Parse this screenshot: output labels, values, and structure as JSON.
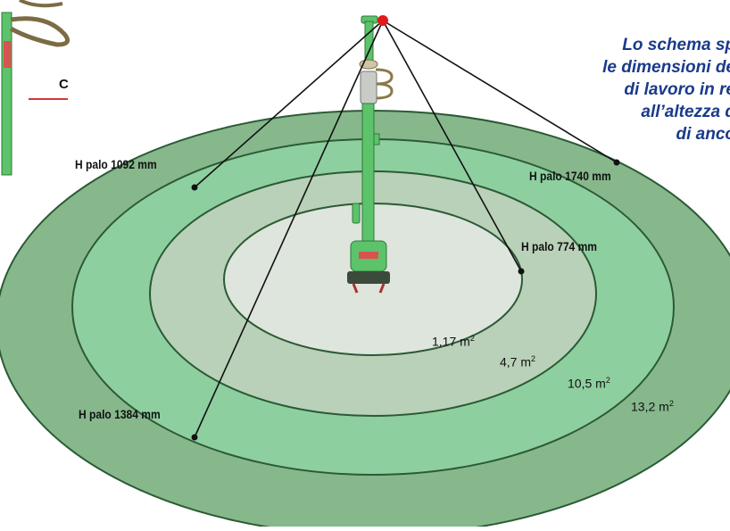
{
  "caption_lines": [
    "Lo schema sp",
    "le dimensioni de",
    "di lavoro in re",
    "all’altezza d",
    "di anco"
  ],
  "side_label": "C",
  "heights": [
    {
      "text": "H palo 774 mm"
    },
    {
      "text": "H palo 1092 mm"
    },
    {
      "text": "H palo 1384 mm"
    },
    {
      "text": "H palo 1740 mm"
    }
  ],
  "areas": [
    {
      "value": "1,17 m",
      "unit_exp": "2"
    },
    {
      "value": "4,7 m",
      "unit_exp": "2"
    },
    {
      "value": "10,5 m",
      "unit_exp": "2"
    },
    {
      "value": "13,2 m",
      "unit_exp": "2"
    }
  ],
  "colors": {
    "zone_1": "#dde5dc",
    "zone_2": "#b9d1b8",
    "zone_3": "#8ecfa0",
    "zone_4": "#86b88c",
    "pole": "#5cc36b",
    "anchor_point": "#e01a1a"
  }
}
